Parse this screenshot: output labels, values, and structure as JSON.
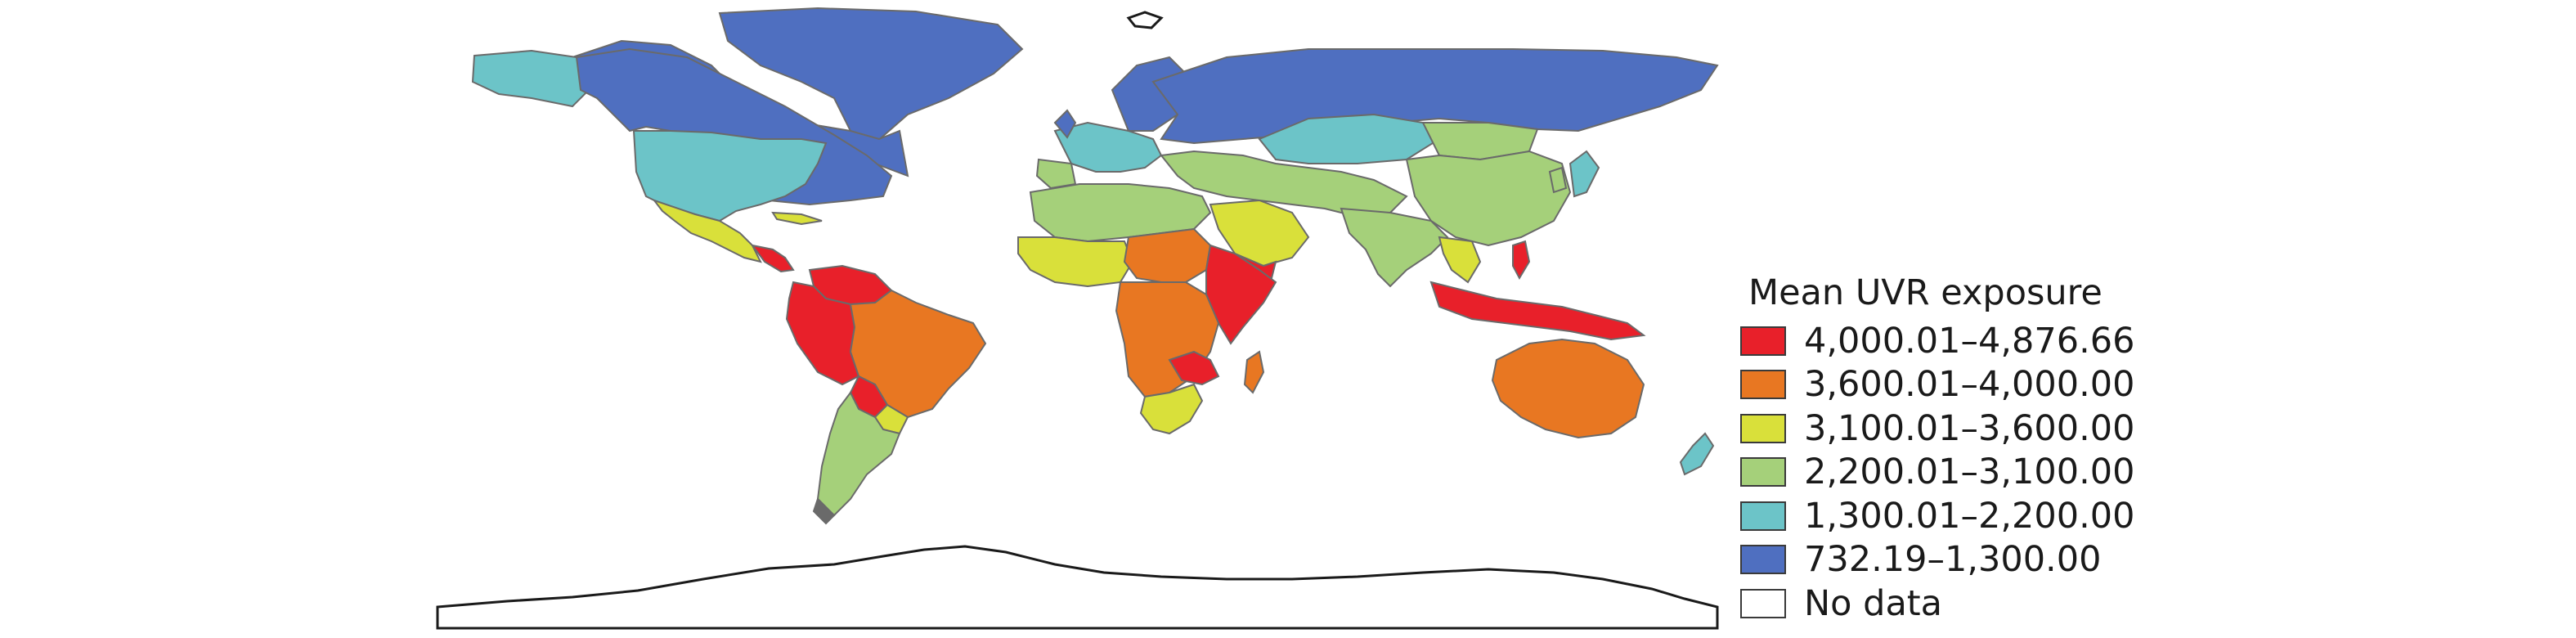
{
  "legend": {
    "title": "Mean UVR exposure",
    "classes": [
      {
        "label": "4,000.01–4,876.66",
        "color": "#e8202a"
      },
      {
        "label": "3,600.01–4,000.00",
        "color": "#e87722"
      },
      {
        "label": "3,100.01–3,600.00",
        "color": "#d9e03a"
      },
      {
        "label": "2,200.01–3,100.00",
        "color": "#a5d07a"
      },
      {
        "label": "1,300.01–2,200.00",
        "color": "#6cc4c8"
      },
      {
        "label": "732.19–1,300.00",
        "color": "#4f6fc0"
      },
      {
        "label": "No data",
        "color": "#ffffff"
      }
    ]
  }
}
